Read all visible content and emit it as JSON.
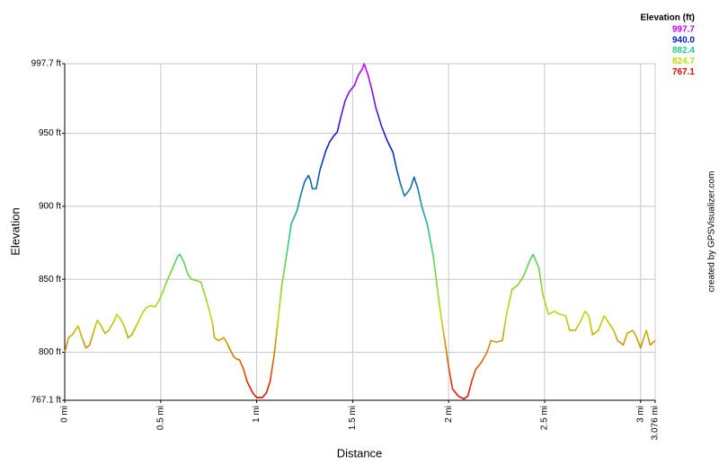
{
  "chart_data": {
    "type": "line",
    "x_label": "Distance",
    "y_label": "Elevation",
    "credit": "created by GPSVisualizer.com",
    "legend_title": "Elevation (ft)",
    "color_scale": [
      {
        "value": 997.7,
        "color": "#cc00ff"
      },
      {
        "value": 940,
        "label": "940.0",
        "color": "#0022cc"
      },
      {
        "value": 882.4,
        "color": "#22cc88"
      },
      {
        "value": 824.7,
        "color": "#bbdd00"
      },
      {
        "value": 767.1,
        "color": "#ee0000"
      }
    ],
    "xlim": [
      0,
      3.076
    ],
    "ylim": [
      767.1,
      997.7
    ],
    "xticks": [
      {
        "value": 0,
        "label": "0 mi"
      },
      {
        "value": 0.5,
        "label": "0.5 mi"
      },
      {
        "value": 1,
        "label": "1 mi"
      },
      {
        "value": 1.5,
        "label": "1.5 mi"
      },
      {
        "value": 2,
        "label": "2 mi"
      },
      {
        "value": 2.5,
        "label": "2.5 mi"
      },
      {
        "value": 3,
        "label": "3 mi"
      },
      {
        "value": 3.076,
        "label": "3.076 mi"
      }
    ],
    "yticks": [
      {
        "value": 767.1,
        "label": "767.1 ft"
      },
      {
        "value": 800,
        "label": "800 ft"
      },
      {
        "value": 850,
        "label": "850 ft"
      },
      {
        "value": 900,
        "label": "900 ft"
      },
      {
        "value": 950,
        "label": "950 ft"
      },
      {
        "value": 997.7,
        "label": "997.7 ft"
      }
    ],
    "grid": true,
    "x": [
      0,
      0.02,
      0.04,
      0.07,
      0.09,
      0.11,
      0.13,
      0.16,
      0.17,
      0.19,
      0.21,
      0.23,
      0.26,
      0.27,
      0.29,
      0.31,
      0.33,
      0.35,
      0.38,
      0.41,
      0.43,
      0.45,
      0.47,
      0.49,
      0.51,
      0.53,
      0.56,
      0.59,
      0.6,
      0.62,
      0.64,
      0.66,
      0.69,
      0.71,
      0.74,
      0.77,
      0.78,
      0.8,
      0.83,
      0.85,
      0.88,
      0.9,
      0.91,
      0.93,
      0.95,
      0.98,
      1,
      1.03,
      1.05,
      1.07,
      1.09,
      1.11,
      1.13,
      1.16,
      1.18,
      1.21,
      1.23,
      1.25,
      1.27,
      1.28,
      1.29,
      1.31,
      1.33,
      1.36,
      1.38,
      1.4,
      1.42,
      1.44,
      1.46,
      1.48,
      1.51,
      1.53,
      1.55,
      1.56,
      1.58,
      1.6,
      1.62,
      1.65,
      1.68,
      1.71,
      1.73,
      1.75,
      1.77,
      1.8,
      1.82,
      1.84,
      1.86,
      1.89,
      1.92,
      1.94,
      1.96,
      1.98,
      2,
      2.02,
      2.05,
      2.08,
      2.1,
      2.12,
      2.14,
      2.17,
      2.2,
      2.22,
      2.25,
      2.28,
      2.3,
      2.33,
      2.36,
      2.39,
      2.42,
      2.44,
      2.47,
      2.49,
      2.52,
      2.55,
      2.58,
      2.61,
      2.63,
      2.66,
      2.69,
      2.71,
      2.73,
      2.75,
      2.78,
      2.81,
      2.82,
      2.86,
      2.88,
      2.91,
      2.93,
      2.96,
      2.98,
      3,
      3.03,
      3.05,
      3.076
    ],
    "values": [
      800,
      810,
      812,
      818,
      810,
      803,
      805,
      818,
      822,
      818,
      813,
      815,
      822,
      826,
      823,
      818,
      810,
      812,
      820,
      828,
      831,
      832,
      831,
      835,
      841,
      848,
      857,
      866,
      867,
      862,
      854,
      850,
      849,
      848,
      835,
      820,
      810,
      808,
      810,
      805,
      797,
      795,
      795,
      789,
      780,
      772,
      769,
      769,
      772,
      780,
      797,
      820,
      845,
      870,
      888,
      897,
      908,
      917,
      921,
      918,
      912,
      912,
      925,
      938,
      944,
      948,
      951,
      962,
      972,
      978,
      983,
      990,
      994,
      997.7,
      990,
      980,
      968,
      955,
      945,
      937,
      925,
      915,
      907,
      912,
      920,
      912,
      900,
      887,
      866,
      845,
      825,
      808,
      790,
      775,
      770,
      768,
      770,
      780,
      788,
      793,
      800,
      808,
      807,
      808,
      825,
      843,
      846,
      852,
      862,
      867,
      858,
      840,
      826,
      828,
      826,
      825,
      815,
      815,
      822,
      828,
      825,
      812,
      815,
      825,
      823,
      815,
      808,
      805,
      813,
      815,
      810,
      803,
      815,
      805,
      808
    ]
  }
}
